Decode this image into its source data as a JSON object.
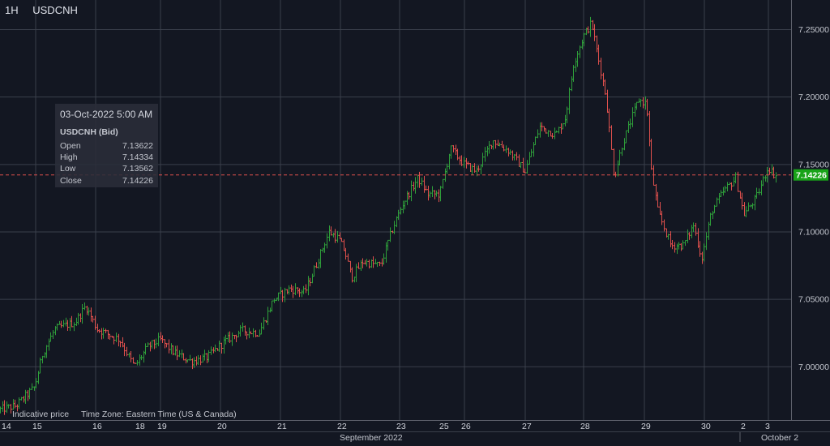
{
  "header": {
    "timeframe": "1H",
    "symbol": "USDCNH"
  },
  "tooltip": {
    "datetime": "03-Oct-2022 5:00 AM",
    "instrument": "USDCNH (Bid)",
    "rows": [
      {
        "label": "Open",
        "value": "7.13622"
      },
      {
        "label": "High",
        "value": "7.14334"
      },
      {
        "label": "Low",
        "value": "7.13562"
      },
      {
        "label": "Close",
        "value": "7.14226"
      }
    ]
  },
  "footer": {
    "note": "Indicative price",
    "timezone": "Time Zone: Eastern Time (US & Canada)"
  },
  "colors": {
    "background": "#131722",
    "grid": "#3a3f4b",
    "up": "#2e9e3a",
    "down": "#e0504d",
    "price_line": "#e0504d",
    "price_label_bg": "#19a319",
    "text": "#c3c6ce"
  },
  "chart_data": {
    "type": "ohlc",
    "title": "USDCNH",
    "interval": "1H",
    "ylim": [
      6.96,
      7.265
    ],
    "y_ticks": [
      "7.25000",
      "7.20000",
      "7.15000",
      "7.10000",
      "7.05000",
      "7.00000"
    ],
    "y_tick_values": [
      7.25,
      7.2,
      7.15,
      7.1,
      7.05,
      7.0
    ],
    "x_ticks": [
      "14",
      "15",
      "16",
      "18",
      "19",
      "20",
      "21",
      "22",
      "23",
      "25",
      "26",
      "27",
      "28",
      "29",
      "30",
      "2",
      "3"
    ],
    "x_month_labels": [
      "September 2022",
      "October 2"
    ],
    "current_price": 7.14226,
    "current_price_label": "7.14226",
    "path_keypoints": [
      [
        0,
        6.968
      ],
      [
        22,
        6.971
      ],
      [
        45,
        6.985
      ],
      [
        55,
        7.01
      ],
      [
        70,
        7.028
      ],
      [
        95,
        7.033
      ],
      [
        108,
        7.045
      ],
      [
        122,
        7.028
      ],
      [
        150,
        7.02
      ],
      [
        168,
        7.0
      ],
      [
        185,
        7.015
      ],
      [
        200,
        7.02
      ],
      [
        218,
        7.01
      ],
      [
        238,
        7.004
      ],
      [
        258,
        7.007
      ],
      [
        278,
        7.018
      ],
      [
        300,
        7.027
      ],
      [
        322,
        7.025
      ],
      [
        340,
        7.05
      ],
      [
        360,
        7.058
      ],
      [
        378,
        7.055
      ],
      [
        392,
        7.075
      ],
      [
        408,
        7.1
      ],
      [
        420,
        7.095
      ],
      [
        428,
        7.085
      ],
      [
        436,
        7.066
      ],
      [
        450,
        7.078
      ],
      [
        472,
        7.075
      ],
      [
        485,
        7.1
      ],
      [
        500,
        7.122
      ],
      [
        518,
        7.14
      ],
      [
        530,
        7.128
      ],
      [
        545,
        7.128
      ],
      [
        558,
        7.162
      ],
      [
        575,
        7.15
      ],
      [
        590,
        7.145
      ],
      [
        610,
        7.168
      ],
      [
        630,
        7.16
      ],
      [
        650,
        7.145
      ],
      [
        668,
        7.178
      ],
      [
        688,
        7.172
      ],
      [
        700,
        7.185
      ],
      [
        710,
        7.225
      ],
      [
        722,
        7.245
      ],
      [
        732,
        7.255
      ],
      [
        740,
        7.23
      ],
      [
        750,
        7.2
      ],
      [
        760,
        7.14
      ],
      [
        770,
        7.165
      ],
      [
        790,
        7.198
      ],
      [
        800,
        7.195
      ],
      [
        806,
        7.145
      ],
      [
        814,
        7.115
      ],
      [
        830,
        7.09
      ],
      [
        845,
        7.09
      ],
      [
        858,
        7.105
      ],
      [
        868,
        7.08
      ],
      [
        880,
        7.115
      ],
      [
        895,
        7.13
      ],
      [
        910,
        7.14
      ],
      [
        920,
        7.113
      ],
      [
        935,
        7.125
      ],
      [
        950,
        7.148
      ],
      [
        958,
        7.142
      ]
    ]
  }
}
